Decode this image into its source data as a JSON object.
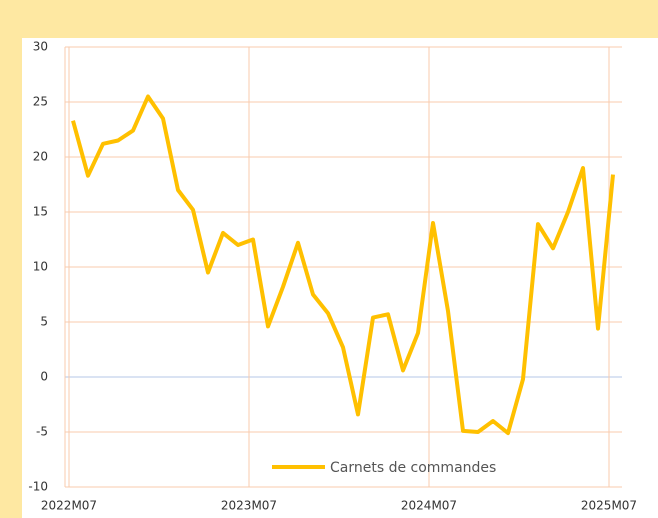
{
  "chart_data": {
    "type": "line",
    "categories": [
      "2022M07",
      null,
      null,
      null,
      null,
      null,
      null,
      null,
      null,
      null,
      null,
      null,
      "2023M07",
      null,
      null,
      null,
      null,
      null,
      null,
      null,
      null,
      null,
      null,
      null,
      "2024M07",
      null,
      null,
      null,
      null,
      null,
      null,
      null,
      null,
      null,
      null,
      null,
      "2025M07"
    ],
    "series": [
      {
        "name": "Carnets de commandes",
        "color": "#ffc000",
        "values": [
          23.3,
          18.3,
          21.2,
          21.5,
          22.4,
          25.5,
          23.5,
          17,
          15.2,
          9.5,
          13.1,
          12,
          12.5,
          4.6,
          8.2,
          12.2,
          7.5,
          5.8,
          2.7,
          -3.4,
          5.4,
          5.7,
          0.6,
          4,
          14,
          6,
          -4.9,
          -5,
          -4,
          -5.1,
          -0.2,
          13.9,
          11.7,
          15,
          19,
          4.4,
          18.4
        ]
      }
    ],
    "ylim": [
      -10,
      30
    ],
    "yticks": [
      -10,
      -5,
      0,
      5,
      10,
      15,
      20,
      25,
      30
    ],
    "grid": true
  }
}
